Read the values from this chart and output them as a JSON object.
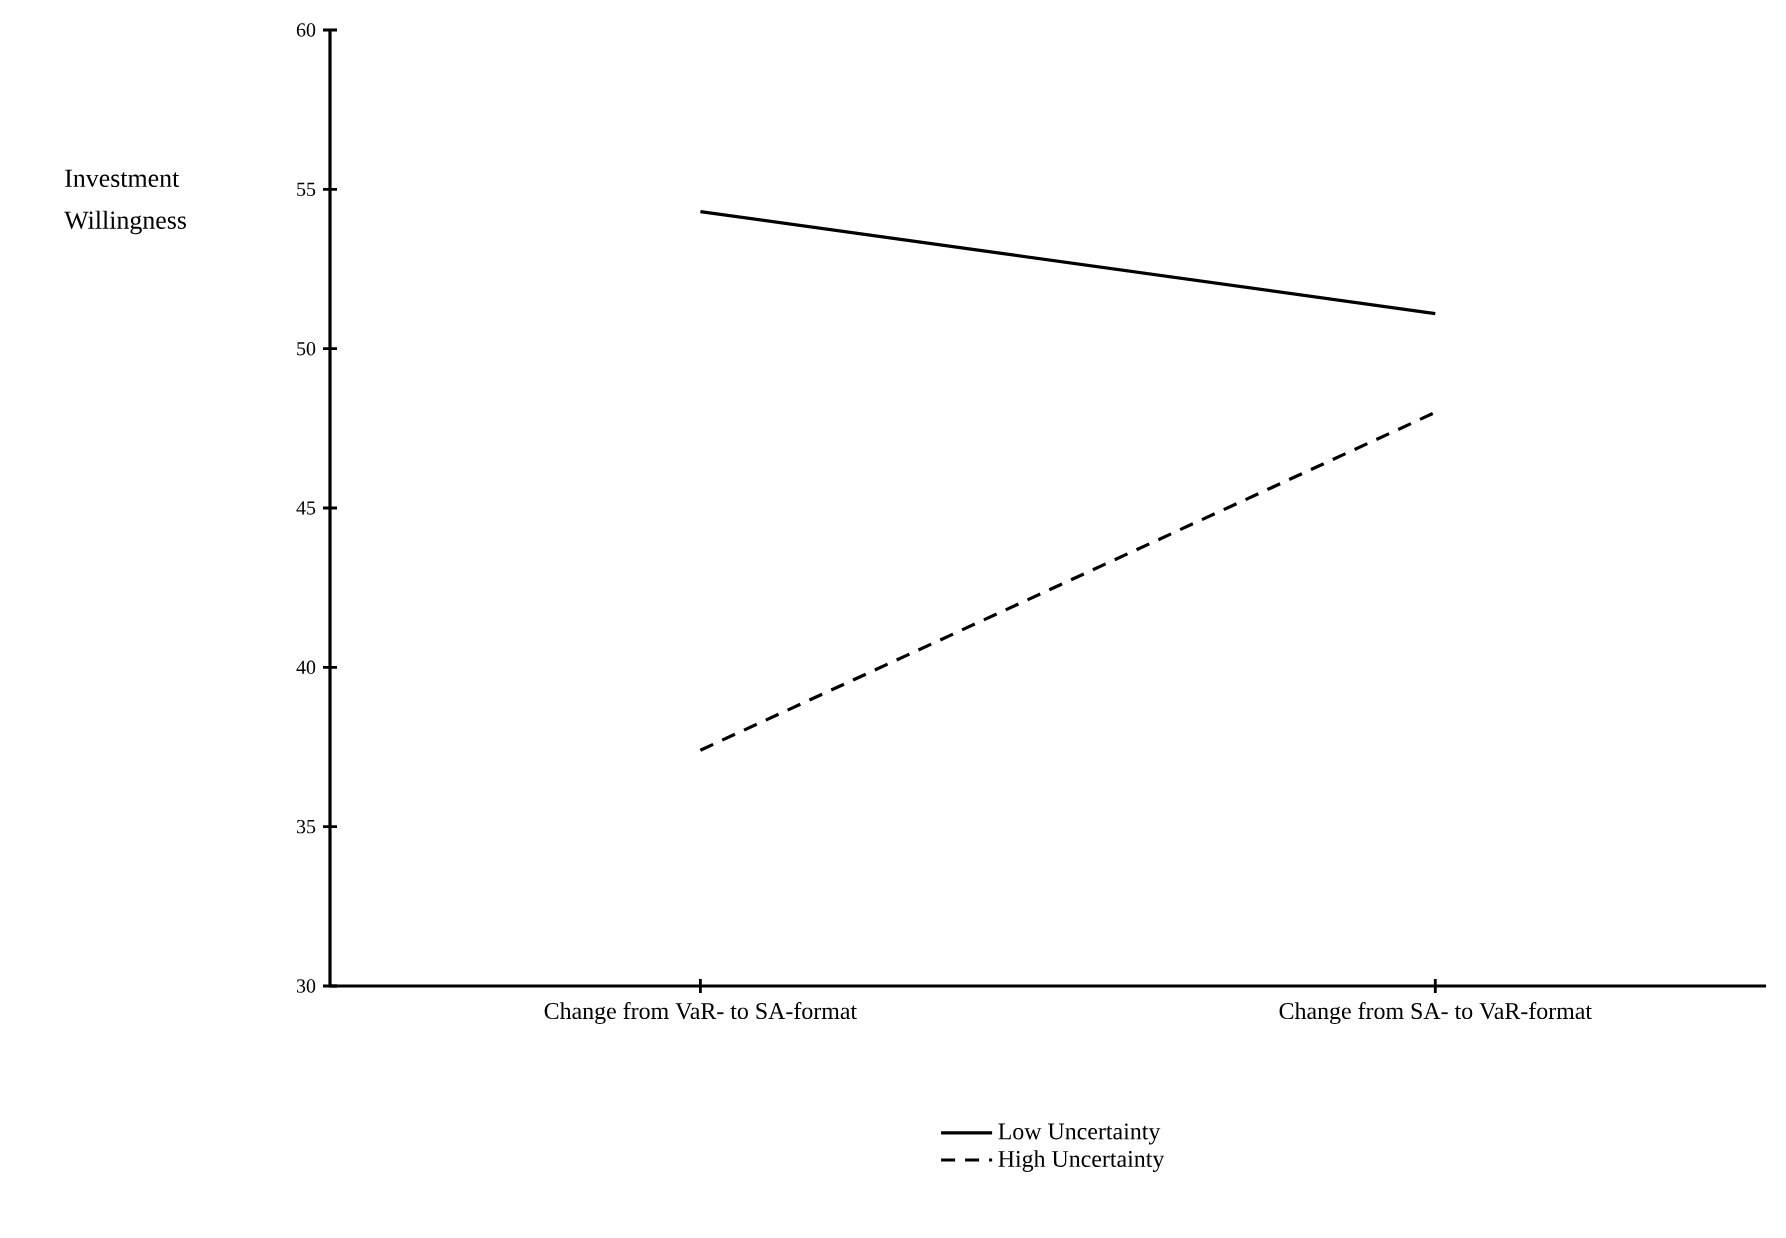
{
  "chart_data": {
    "type": "line",
    "ylabel": "Investment Willingness",
    "categories": [
      "Change from VaR- to SA-format",
      "Change from SA- to VaR-format"
    ],
    "series": [
      {
        "name": "Low Uncertainty",
        "color": "#000000",
        "line_style": "solid",
        "values": [
          54.3,
          51.1
        ]
      },
      {
        "name": "High Uncertainty",
        "color": "#000000",
        "line_style": "dashed",
        "values": [
          37.4,
          48.0
        ]
      }
    ],
    "ylim": [
      30,
      60
    ],
    "yticks": [
      30,
      35,
      40,
      45,
      50,
      55,
      60
    ],
    "grid": false,
    "legend": "bottom"
  }
}
